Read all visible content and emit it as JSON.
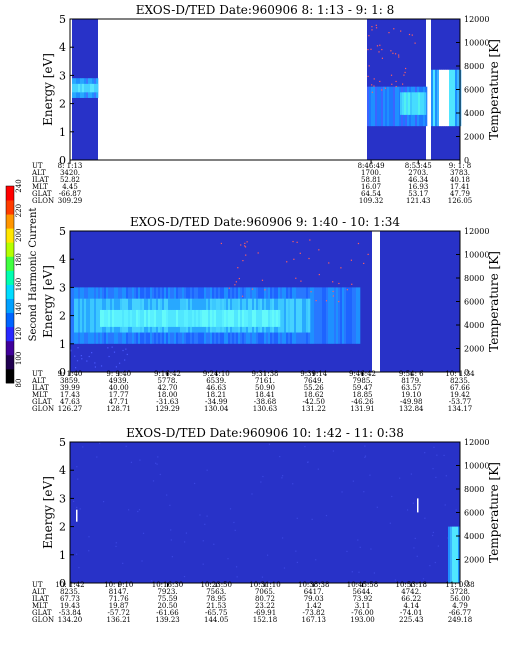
{
  "chart_data": [
    {
      "type": "heatmap",
      "title": "EXOS-D/TED   Date:960906  8: 1:13 - 9: 1: 8",
      "ylabel": "Energy [eV]",
      "y2label": "Temperature [K]",
      "ylim": [
        0,
        5
      ],
      "y2lim": [
        0,
        12000
      ],
      "yticks": [
        0,
        1,
        2,
        3,
        4,
        5
      ],
      "y2ticks": [
        0,
        2000,
        4000,
        6000,
        8000,
        10000,
        12000
      ],
      "orbit_table": {
        "row_labels": [
          "UT",
          "ALT",
          "ILAT",
          "MLT",
          "GLAT",
          "GLON"
        ],
        "columns": [
          {
            "values": [
              "8: 1:13",
              "3420.",
              "52.82",
              "4.45",
              "-66.87",
              "309.29"
            ]
          },
          {
            "values": [
              "8:46:49",
              "1700.",
              "58.81",
              "16.07",
              "64.54",
              "109.32"
            ]
          },
          {
            "values": [
              "8:53:45",
              "2703.",
              "46.34",
              "16.93",
              "53.17",
              "121.43"
            ]
          },
          {
            "values": [
              "9: 1: 8",
              "3783.",
              "40.18",
              "17.41",
              "47.79",
              "126.05"
            ]
          }
        ]
      }
    },
    {
      "type": "heatmap",
      "title": "EXOS-D/TED   Date:960906  9: 1:40 - 10: 1:34",
      "ylabel": "Energy [eV]",
      "y2label": "Temperature [K]",
      "ylim": [
        0,
        5
      ],
      "y2lim": [
        0,
        12000
      ],
      "yticks": [
        0,
        1,
        2,
        3,
        4,
        5
      ],
      "y2ticks": [
        0,
        2000,
        4000,
        6000,
        8000,
        10000,
        12000
      ],
      "colorbar": {
        "label": "Second Harmonic Current",
        "range": [
          80,
          240
        ],
        "ticks": [
          80,
          100,
          120,
          140,
          160,
          180,
          200,
          220,
          240
        ]
      },
      "orbit_table": {
        "row_labels": [
          "UT",
          "ALT",
          "ILAT",
          "MLT",
          "GLAT",
          "GLON"
        ],
        "columns": [
          {
            "values": [
              "9: 1:40",
              "3859.",
              "39.99",
              "17.43",
              "47.63",
              "126.27"
            ]
          },
          {
            "values": [
              "9: 9:40",
              "4939.",
              "40.00",
              "17.77",
              "47.71",
              "128.71"
            ]
          },
          {
            "values": [
              "9:16:42",
              "5778.",
              "42.70",
              "18.00",
              "-31.63",
              "129.29"
            ]
          },
          {
            "values": [
              "9:24:10",
              "6539.",
              "46.63",
              "18.21",
              "-34.99",
              "130.04"
            ]
          },
          {
            "values": [
              "9:31:38",
              "7161.",
              "50.90",
              "18.41",
              "-38.68",
              "130.63"
            ]
          },
          {
            "values": [
              "9:39:14",
              "7649.",
              "55.26",
              "18.62",
              "-42.50",
              "131.22"
            ]
          },
          {
            "values": [
              "9:46:42",
              "7985.",
              "59.47",
              "18.85",
              "-46.26",
              "131.91"
            ]
          },
          {
            "values": [
              "9:54: 6",
              "8179.",
              "63.57",
              "19.10",
              "-49.98",
              "132.84"
            ]
          },
          {
            "values": [
              "10: 1:34",
              "8235.",
              "67.66",
              "19.42",
              "-53.77",
              "134.17"
            ]
          }
        ]
      }
    },
    {
      "type": "heatmap",
      "title": "EXOS-D/TED   Date:960906  10: 1:42 - 11: 0:38",
      "ylabel": "Energy [eV]",
      "y2label": "Temperature [K]",
      "ylim": [
        0,
        5
      ],
      "y2lim": [
        0,
        12000
      ],
      "yticks": [
        0,
        1,
        2,
        3,
        4,
        5
      ],
      "y2ticks": [
        0,
        2000,
        4000,
        6000,
        8000,
        10000,
        12000
      ],
      "orbit_table": {
        "row_labels": [
          "UT",
          "ALT",
          "ILAT",
          "MLT",
          "GLAT",
          "GLON"
        ],
        "columns": [
          {
            "values": [
              "10: 1:42",
              "8235.",
              "67.73",
              "19.43",
              "-53.84",
              "134.20"
            ]
          },
          {
            "values": [
              "10: 9:10",
              "8147.",
              "71.76",
              "19.87",
              "-57.72",
              "136.21"
            ]
          },
          {
            "values": [
              "10:16:30",
              "7923.",
              "75.59",
              "20.50",
              "-61.66",
              "139.23"
            ]
          },
          {
            "values": [
              "10:23:50",
              "7563.",
              "78.95",
              "21.53",
              "-65.75",
              "144.05"
            ]
          },
          {
            "values": [
              "10:31:10",
              "7065.",
              "80.72",
              "23.22",
              "-69.91",
              "152.18"
            ]
          },
          {
            "values": [
              "10:38:38",
              "6417.",
              "79.03",
              "1.42",
              "-73.82",
              "167.13"
            ]
          },
          {
            "values": [
              "10:45:58",
              "5644.",
              "73.92",
              "3.11",
              "-76.00",
              "193.00"
            ]
          },
          {
            "values": [
              "10:53:18",
              "4742.",
              "66.22",
              "4.14",
              "-74.01",
              "225.43"
            ]
          },
          {
            "values": [
              "11: 0:38",
              "3728.",
              "56.00",
              "4.79",
              "-66.77",
              "249.18"
            ]
          }
        ]
      }
    }
  ]
}
